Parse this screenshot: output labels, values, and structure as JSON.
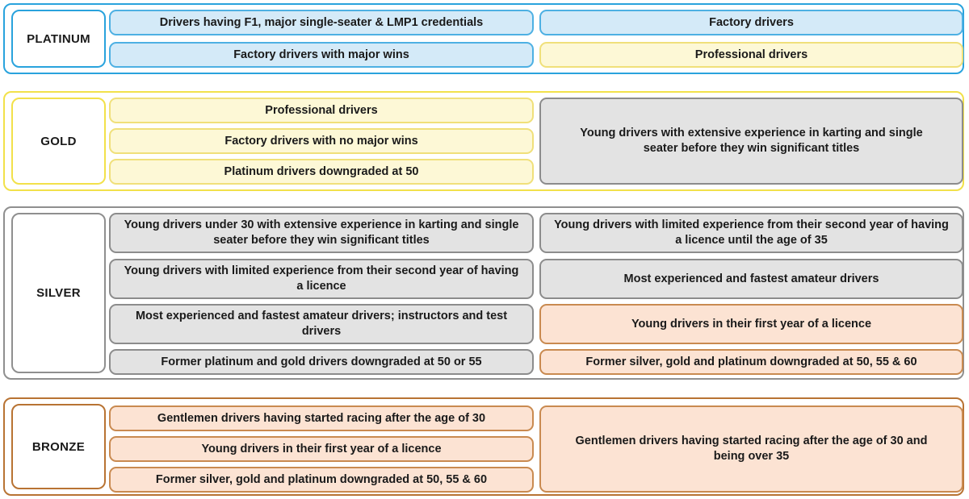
{
  "tiers": {
    "platinum": {
      "label": "PLATINUM",
      "left": [
        "Drivers having F1, major single-seater & LMP1 credentials",
        "Factory drivers with major wins"
      ],
      "right": [
        "Factory drivers",
        "Professional drivers"
      ]
    },
    "gold": {
      "label": "GOLD",
      "left": [
        "Professional drivers",
        "Factory drivers with no major wins",
        "Platinum drivers downgraded at 50"
      ],
      "right": [
        "Young drivers with extensive experience in karting and single seater before they win significant titles"
      ]
    },
    "silver": {
      "label": "SILVER",
      "left": [
        "Young drivers under 30 with extensive experience in karting and single seater before they win significant titles",
        "Young drivers with limited experience from their second year of having a licence",
        "Most experienced and fastest amateur drivers; instructors and test drivers",
        "Former platinum and gold drivers downgraded at 50 or 55"
      ],
      "right": [
        "Young drivers with limited experience from their second year of having a licence until the age of 35",
        "Most experienced and fastest amateur drivers",
        "Young drivers in their first year of a licence",
        "Former silver, gold and platinum downgraded at 50, 55 & 60"
      ]
    },
    "bronze": {
      "label": "BRONZE",
      "left": [
        "Gentlemen drivers having started racing after the age of 30",
        "Young drivers in their first year of a licence",
        "Former silver, gold and platinum downgraded at 50, 55 & 60"
      ],
      "right": [
        "Gentlemen drivers having started racing after the age of 30 and being over 35"
      ]
    }
  },
  "colors": {
    "platinum_border": "#29a3dd",
    "gold_border": "#f2e14a",
    "silver_border": "#8f8f8f",
    "bronze_border": "#b87333",
    "blue_fill": "#d4eaf8",
    "yellow_fill": "#fdf8d6",
    "grey_fill": "#e3e3e3",
    "peach_fill": "#fce3d3"
  }
}
